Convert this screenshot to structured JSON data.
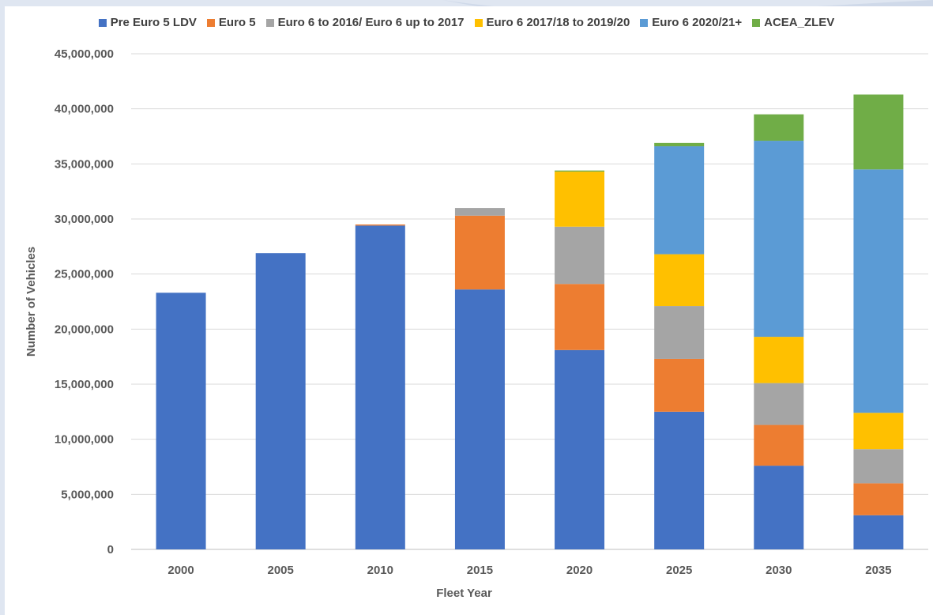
{
  "chart_data": {
    "type": "bar",
    "stacked": true,
    "title": "",
    "xlabel": "Fleet Year",
    "ylabel": "Number of Vehicles",
    "ylim": [
      0,
      45000000
    ],
    "y_ticks": [
      "0",
      "5,000,000",
      "10,000,000",
      "15,000,000",
      "20,000,000",
      "25,000,000",
      "30,000,000",
      "35,000,000",
      "40,000,000",
      "45,000,000"
    ],
    "grid": true,
    "legend_position": "top",
    "categories": [
      "2000",
      "2005",
      "2010",
      "2015",
      "2020",
      "2025",
      "2030",
      "2035"
    ],
    "series": [
      {
        "name": "Pre Euro 5 LDV",
        "color": "#4472c4",
        "values": [
          23300000,
          26900000,
          29400000,
          23600000,
          18100000,
          12500000,
          7600000,
          3100000
        ]
      },
      {
        "name": "Euro 5",
        "color": "#ed7d31",
        "values": [
          0,
          0,
          100000,
          6700000,
          6000000,
          4800000,
          3700000,
          2900000
        ]
      },
      {
        "name": "Euro 6 to 2016/ Euro 6 up to 2017",
        "color": "#a5a5a5",
        "values": [
          0,
          0,
          0,
          700000,
          5200000,
          4800000,
          3800000,
          3100000
        ]
      },
      {
        "name": "Euro 6 2017/18 to 2019/20",
        "color": "#ffc000",
        "values": [
          0,
          0,
          0,
          0,
          5000000,
          4700000,
          4200000,
          3300000
        ]
      },
      {
        "name": "Euro 6 2020/21+",
        "color": "#5b9bd5",
        "values": [
          0,
          0,
          0,
          0,
          0,
          9800000,
          17800000,
          22100000
        ]
      },
      {
        "name": "ACEA_ZLEV",
        "color": "#70ad47",
        "values": [
          0,
          0,
          0,
          0,
          100000,
          300000,
          2400000,
          6800000
        ]
      }
    ]
  }
}
